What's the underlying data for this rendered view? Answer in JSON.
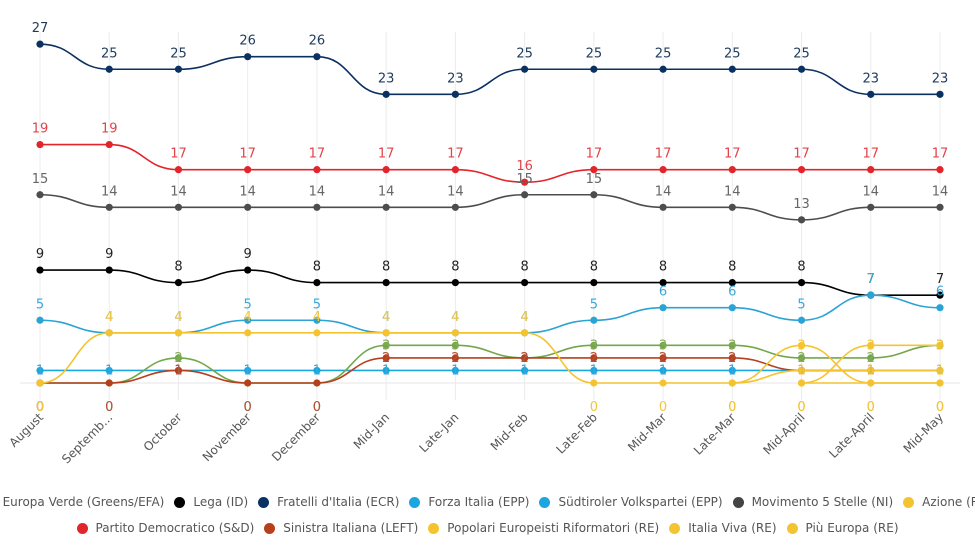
{
  "chart_data": {
    "type": "line",
    "title": "",
    "xlabel": "",
    "ylabel": "",
    "ylim": [
      0,
      27
    ],
    "grid": "vertical",
    "legend_position": "bottom",
    "categories": [
      "August",
      "Septemb...",
      "October",
      "November",
      "December",
      "Mid-Jan",
      "Late-Jan",
      "Mid-Feb",
      "Late-Feb",
      "Mid-Mar",
      "Late-Mar",
      "Mid-April",
      "Late-April",
      "Mid-May"
    ],
    "series": [
      {
        "name": "Fratelli d'Italia (ECR)",
        "color": "#0a3161",
        "label_color": "#1f3b5c",
        "values": [
          27,
          25,
          25,
          26,
          26,
          23,
          23,
          25,
          25,
          25,
          25,
          25,
          23,
          23
        ]
      },
      {
        "name": "Partito Democratico (S&D)",
        "color": "#e3242b",
        "label_color": "#e0434a",
        "values": [
          19,
          19,
          17,
          17,
          17,
          17,
          17,
          16,
          17,
          17,
          17,
          17,
          17,
          17
        ]
      },
      {
        "name": "Movimento 5 Stelle (NI)",
        "color": "#4d4d4d",
        "label_color": "#666666",
        "values": [
          15,
          14,
          14,
          14,
          14,
          14,
          14,
          15,
          15,
          14,
          14,
          13,
          14,
          14
        ]
      },
      {
        "name": "Lega (ID)",
        "color": "#000000",
        "label_color": "#222222",
        "values": [
          9,
          9,
          8,
          9,
          8,
          8,
          8,
          8,
          8,
          8,
          8,
          8,
          7,
          7
        ]
      },
      {
        "name": "Forza Italia (EPP)",
        "color": "#2aa3d6",
        "label_color": "#3aa7d8",
        "values": [
          5,
          4,
          4,
          5,
          5,
          4,
          4,
          4,
          5,
          6,
          6,
          5,
          7,
          6
        ]
      },
      {
        "name": "Südtiroler Volkspartei (EPP)",
        "color": "#1aa7e0",
        "label_color": "#3aa7d8",
        "values": [
          1,
          1,
          1,
          1,
          1,
          1,
          1,
          1,
          1,
          1,
          1,
          1,
          1,
          1
        ]
      },
      {
        "name": "Europa Verde (Greens/EFA)",
        "color": "#72a84a",
        "label_color": "#8aab5c",
        "values": [
          0,
          0,
          2,
          0,
          0,
          3,
          3,
          2,
          3,
          3,
          3,
          2,
          2,
          3
        ]
      },
      {
        "name": "Sinistra Italiana (LEFT)",
        "color": "#b5401e",
        "label_color": "#b5503a",
        "values": [
          0,
          0,
          1,
          0,
          0,
          2,
          2,
          2,
          2,
          2,
          2,
          1,
          1,
          null
        ]
      },
      {
        "name": "Azione (RE)",
        "color": "#f4c430",
        "label_color": "#f2c53d",
        "values": [
          0,
          4,
          4,
          4,
          4,
          4,
          4,
          4,
          0,
          0,
          0,
          3,
          0,
          0
        ]
      },
      {
        "name": "Popolari Europeisti Riformatori (RE)",
        "color": "#f4c430",
        "label_color": "#f2c53d",
        "values": [
          null,
          null,
          null,
          null,
          null,
          null,
          null,
          null,
          null,
          null,
          null,
          0,
          3,
          3
        ]
      },
      {
        "name": "Italia Viva (RE)",
        "color": "#f4c430",
        "label_color": "#f2c53d",
        "values": [
          null,
          null,
          null,
          null,
          null,
          null,
          null,
          null,
          null,
          null,
          0,
          1,
          1,
          1
        ]
      },
      {
        "name": "Più Europa (RE)",
        "color": "#f4c430",
        "label_color": "#f2c53d",
        "values": [
          null,
          null,
          null,
          null,
          null,
          null,
          null,
          null,
          null,
          null,
          null,
          0,
          0,
          0
        ]
      }
    ]
  },
  "legend": {
    "row1": [
      {
        "label": "Europa Verde (Greens/EFA)",
        "color": "#72a84a"
      },
      {
        "label": "Lega (ID)",
        "color": "#000000"
      },
      {
        "label": "Fratelli d'Italia (ECR)",
        "color": "#0a3161"
      },
      {
        "label": "Forza Italia (EPP)",
        "color": "#1aa7e0"
      },
      {
        "label": "Südtiroler Volkspartei (EPP)",
        "color": "#1aa7e0"
      },
      {
        "label": "Movimento 5 Stelle (NI)",
        "color": "#444444"
      },
      {
        "label": "Azione (RE)",
        "color": "#f4c430"
      }
    ],
    "row2": [
      {
        "label": "Partito Democratico (S&D)",
        "color": "#e3242b"
      },
      {
        "label": "Sinistra Italiana (LEFT)",
        "color": "#b5401e"
      },
      {
        "label": "Popolari Europeisti Riformatori (RE)",
        "color": "#f4c430"
      },
      {
        "label": "Italia Viva (RE)",
        "color": "#f4c430"
      },
      {
        "label": "Più Europa (RE)",
        "color": "#f4c430"
      }
    ]
  }
}
